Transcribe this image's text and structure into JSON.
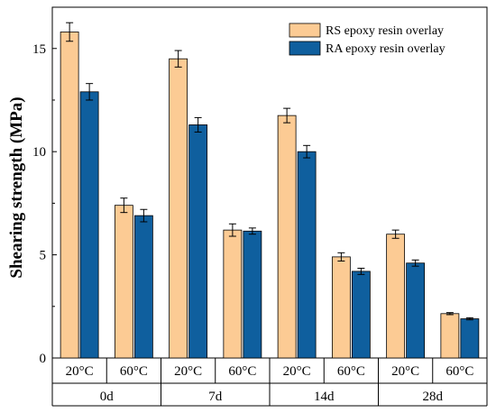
{
  "chart_data": {
    "type": "bar",
    "ylabel": "Shearing strength (MPa)",
    "xlabel": "",
    "ylim": [
      0,
      17
    ],
    "yticks": [
      0,
      5,
      10,
      15
    ],
    "legend_position": "top-right",
    "groups": [
      "0d",
      "7d",
      "14d",
      "28d"
    ],
    "temperatures": [
      "20°C",
      "60°C"
    ],
    "categories": [
      "0d 20°C",
      "0d 60°C",
      "7d 20°C",
      "7d 60°C",
      "14d 20°C",
      "14d 60°C",
      "28d 20°C",
      "28d 60°C"
    ],
    "series": [
      {
        "name": "RS epoxy resin overlay",
        "color": "#FCCB94",
        "values": [
          15.8,
          7.4,
          14.5,
          6.2,
          11.75,
          4.9,
          6.0,
          2.15
        ],
        "errors": [
          0.45,
          0.35,
          0.4,
          0.3,
          0.35,
          0.2,
          0.2,
          0.05
        ]
      },
      {
        "name": "RA epoxy resin overlay",
        "color": "#0F5F9E",
        "values": [
          12.9,
          6.9,
          11.3,
          6.15,
          10.0,
          4.2,
          4.6,
          1.9
        ],
        "errors": [
          0.4,
          0.3,
          0.35,
          0.15,
          0.3,
          0.15,
          0.15,
          0.05
        ]
      }
    ]
  }
}
